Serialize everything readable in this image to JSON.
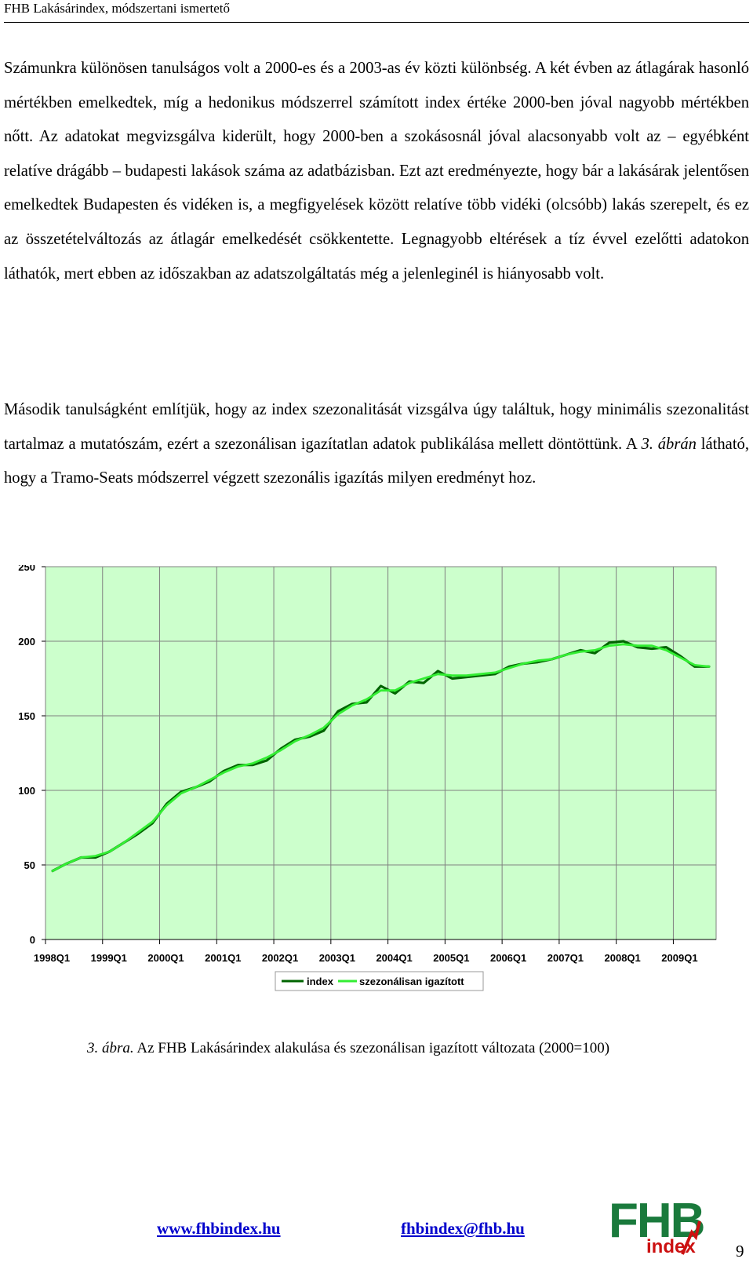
{
  "header": {
    "title": "FHB Lakásárindex, módszertani ismertető"
  },
  "body": {
    "paragraph1": "Számunkra különösen tanulságos volt a 2000-es és a 2003-as év közti különbség. A két évben az átlagárak hasonló mértékben emelkedtek, míg a hedonikus módszerrel számított index értéke 2000-ben jóval nagyobb mértékben nőtt. Az adatokat megvizsgálva kiderült, hogy 2000-ben a szokásosnál jóval alacsonyabb volt az – egyébként relatíve drágább – budapesti lakások száma az adatbázisban. Ezt azt eredményezte, hogy bár a lakásárak jelentősen emelkedtek Budapesten és vidéken is, a megfigyelések között relatíve több vidéki (olcsóbb) lakás szerepelt, és ez az összetételváltozás az átlagár emelkedését csökkentette. Legnagyobb eltérések a tíz évvel ezelőtti adatokon láthatók, mert ebben az időszakban az adatszolgáltatás még a jelenleginél is hiányosabb volt.",
    "paragraph2_a": "Második tanulságként említjük, hogy az index szezonalitását vizsgálva úgy találtuk, hogy minimális szezonalitást tartalmaz a mutatószám, ezért a szezonálisan igazítatlan adatok publikálása mellett döntöttünk. A ",
    "paragraph2_ref": "3. ábrán",
    "paragraph2_b": " látható, hogy a Tramo-Seats módszerrel végzett szezonális igazítás milyen eredményt hoz."
  },
  "caption": {
    "label": "3. ábra.",
    "text": " Az FHB Lakásárindex alakulása és szezonálisan igazított változata (2000=100)"
  },
  "footer": {
    "website": "www.fhbindex.hu",
    "email": "fhbindex@fhb.hu",
    "page_number": "9",
    "logo_text": "FHB",
    "logo_sub": "index"
  },
  "colors": {
    "plot_bg": "#ccffcc",
    "grid": "#808080",
    "index_line": "#006400",
    "adjusted_line": "#33ee33",
    "logo_green": "#1a7a3c",
    "logo_red": "#cc1111",
    "link": "#0000cc"
  },
  "chart_data": {
    "type": "line",
    "x": [
      "1998Q1",
      "1998Q2",
      "1998Q3",
      "1998Q4",
      "1999Q1",
      "1999Q2",
      "1999Q3",
      "1999Q4",
      "2000Q1",
      "2000Q2",
      "2000Q3",
      "2000Q4",
      "2001Q1",
      "2001Q2",
      "2001Q3",
      "2001Q4",
      "2002Q1",
      "2002Q2",
      "2002Q3",
      "2002Q4",
      "2003Q1",
      "2003Q2",
      "2003Q3",
      "2003Q4",
      "2004Q1",
      "2004Q2",
      "2004Q3",
      "2004Q4",
      "2005Q1",
      "2005Q2",
      "2005Q3",
      "2005Q4",
      "2006Q1",
      "2006Q2",
      "2006Q3",
      "2006Q4",
      "2007Q1",
      "2007Q2",
      "2007Q3",
      "2007Q4",
      "2008Q1",
      "2008Q2",
      "2008Q3",
      "2008Q4",
      "2009Q1",
      "2009Q2",
      "2009Q3"
    ],
    "tick_labels": [
      "1998Q1",
      "1999Q1",
      "2000Q1",
      "2001Q1",
      "2002Q1",
      "2003Q1",
      "2004Q1",
      "2005Q1",
      "2006Q1",
      "2007Q1",
      "2008Q1",
      "2009Q1"
    ],
    "series": [
      {
        "name": "index",
        "values": [
          46,
          51,
          55,
          55,
          59,
          65,
          71,
          78,
          91,
          99,
          102,
          106,
          113,
          117,
          117,
          120,
          128,
          134,
          136,
          140,
          153,
          158,
          159,
          170,
          165,
          173,
          172,
          180,
          175,
          176,
          177,
          178,
          183,
          185,
          186,
          188,
          191,
          194,
          192,
          199,
          200,
          196,
          195,
          196,
          190,
          183,
          183
        ]
      },
      {
        "name": "szezonálisan igazított",
        "values": [
          46,
          51,
          55,
          56,
          59,
          65,
          72,
          79,
          90,
          98,
          102,
          107,
          112,
          116,
          118,
          122,
          127,
          133,
          137,
          142,
          151,
          157,
          161,
          167,
          167,
          172,
          175,
          178,
          177,
          177,
          178,
          179,
          182,
          185,
          187,
          188,
          191,
          193,
          194,
          197,
          198,
          197,
          197,
          194,
          189,
          184,
          183
        ]
      }
    ],
    "xlabel": "",
    "ylabel": "",
    "ylim": [
      0,
      250
    ],
    "yticks": [
      0,
      50,
      100,
      150,
      200,
      250
    ],
    "grid": true,
    "legend": "bottom-center"
  }
}
